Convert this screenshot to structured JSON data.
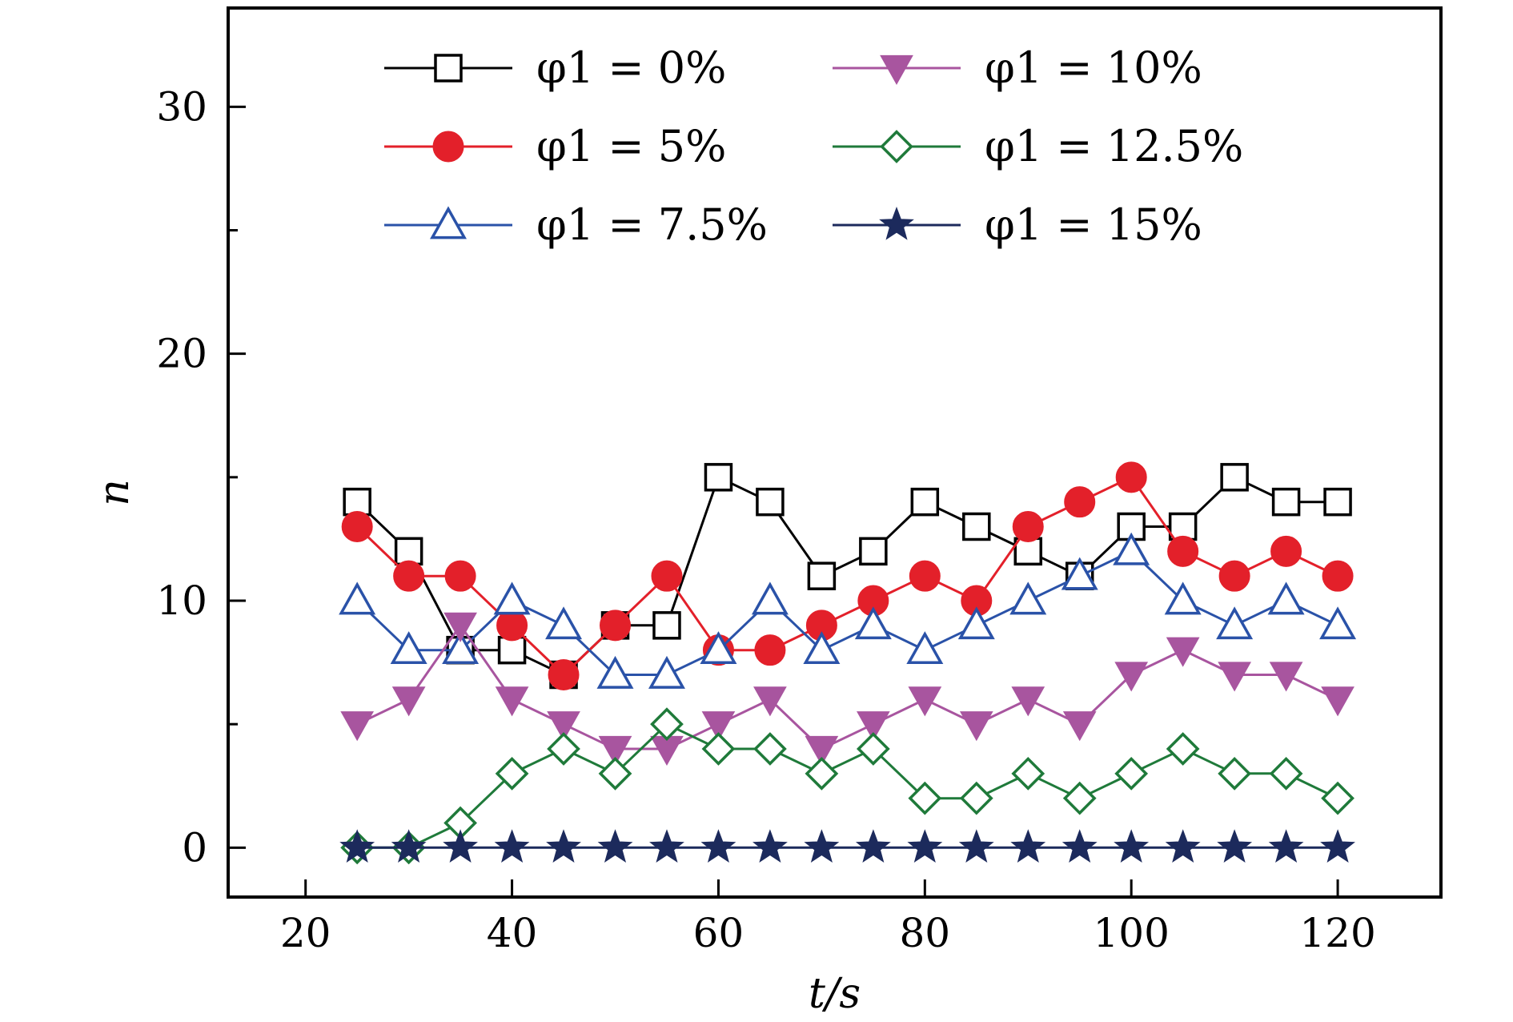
{
  "chart_data": {
    "type": "line",
    "xlabel": "t/s",
    "ylabel": "n",
    "xlim": [
      12.5,
      130
    ],
    "ylim": [
      -2,
      34
    ],
    "xticks": [
      20,
      40,
      60,
      80,
      100,
      120
    ],
    "yticks": [
      0,
      10,
      20,
      30
    ],
    "x": [
      25,
      30,
      35,
      40,
      45,
      50,
      55,
      60,
      65,
      70,
      75,
      80,
      85,
      90,
      95,
      100,
      105,
      110,
      115,
      120
    ],
    "grid": false,
    "legend_position": "top",
    "series": [
      {
        "name": "φ1 = 0%",
        "color": "#000000",
        "marker": "square-open",
        "values": [
          14,
          12,
          8,
          8,
          7,
          9,
          9,
          15,
          14,
          11,
          12,
          14,
          13,
          12,
          11,
          13,
          13,
          15,
          14,
          14
        ]
      },
      {
        "name": "φ1 = 5%",
        "color": "#e3202a",
        "marker": "circle-filled",
        "values": [
          13,
          11,
          11,
          9,
          7,
          9,
          11,
          8,
          8,
          9,
          10,
          11,
          10,
          13,
          14,
          15,
          12,
          11,
          12,
          11
        ]
      },
      {
        "name": "φ1 = 7.5%",
        "color": "#2a52a8",
        "marker": "triangle-up-open",
        "values": [
          10,
          8,
          8,
          10,
          9,
          7,
          7,
          8,
          10,
          8,
          9,
          8,
          9,
          10,
          11,
          12,
          10,
          9,
          10,
          9
        ]
      },
      {
        "name": "φ1 = 10%",
        "color": "#a8559f",
        "marker": "triangle-down-filled",
        "values": [
          5,
          6,
          9,
          6,
          5,
          4,
          4,
          5,
          6,
          4,
          5,
          6,
          5,
          6,
          5,
          7,
          8,
          7,
          7,
          6
        ]
      },
      {
        "name": "φ1 = 12.5%",
        "color": "#1f7a3a",
        "marker": "diamond-open",
        "values": [
          0,
          0,
          1,
          3,
          4,
          3,
          5,
          4,
          4,
          3,
          4,
          2,
          2,
          3,
          2,
          3,
          4,
          3,
          3,
          2
        ]
      },
      {
        "name": "φ1 = 15%",
        "color": "#1c2a5c",
        "marker": "star-filled",
        "values": [
          0,
          0,
          0,
          0,
          0,
          0,
          0,
          0,
          0,
          0,
          0,
          0,
          0,
          0,
          0,
          0,
          0,
          0,
          0,
          0
        ]
      }
    ]
  }
}
